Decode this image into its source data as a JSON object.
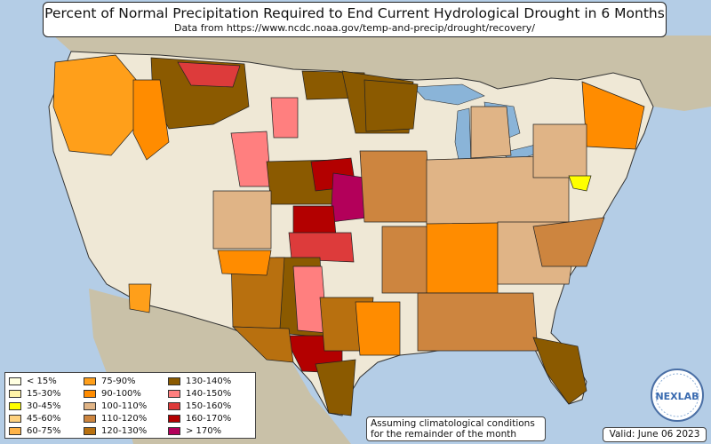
{
  "title": "Percent of Normal Precipitation Required to End Current Hydrological Drought in 6 Months",
  "subtitle": "Data from https://www.ncdc.noaa.gov/temp-and-precip/drought/recovery/",
  "note_lines": [
    "Assuming climatological conditions",
    "for the remainder of the month"
  ],
  "valid": "Valid: June 06 2023",
  "logo_text": "NEXLAB",
  "colors": {
    "ocean": "#b4cde6",
    "land_outside": "#c9c1a8",
    "land_us": "#efe8d6",
    "lakes": "#8ab4d8"
  },
  "legend": [
    {
      "label": "< 15%",
      "color": "#ffffe0"
    },
    {
      "label": "15-30%",
      "color": "#fff3a8"
    },
    {
      "label": "30-45%",
      "color": "#ffff00"
    },
    {
      "label": "45-60%",
      "color": "#ffd27f"
    },
    {
      "label": "60-75%",
      "color": "#ffb347"
    },
    {
      "label": "75-90%",
      "color": "#ff9f1a"
    },
    {
      "label": "90-100%",
      "color": "#ff8c00"
    },
    {
      "label": "100-110%",
      "color": "#e0b486"
    },
    {
      "label": "110-120%",
      "color": "#cd853f"
    },
    {
      "label": "120-130%",
      "color": "#b8700f"
    },
    {
      "label": "130-140%",
      "color": "#8b5a00"
    },
    {
      "label": "140-150%",
      "color": "#ff7f7f"
    },
    {
      "label": "150-160%",
      "color": "#dd3b3b"
    },
    {
      "label": "160-170%",
      "color": "#b30000"
    },
    {
      "label": "> 170%",
      "color": "#b3005a"
    }
  ]
}
